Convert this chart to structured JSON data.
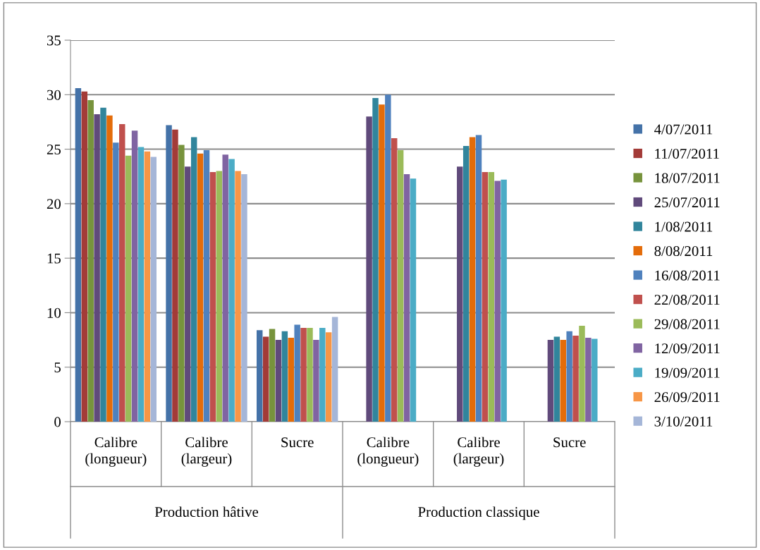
{
  "chart_data": {
    "type": "bar",
    "categories": [
      "Calibre\n(longueur)",
      "Calibre\n(largeur)",
      "Sucre",
      "Calibre\n(longueur)",
      "Calibre\n(largeur)",
      "Sucre"
    ],
    "annotations": [
      "Production hâtive",
      "Production classique"
    ],
    "ylim": [
      0,
      35
    ],
    "yticks": [
      0,
      5,
      10,
      15,
      20,
      25,
      30,
      35
    ],
    "grid": "y",
    "legend": "right",
    "series": [
      {
        "name": "4/07/2011",
        "color": "#4472a8",
        "values": [
          30.6,
          27.2,
          8.4,
          null,
          null,
          null
        ]
      },
      {
        "name": "11/07/2011",
        "color": "#a33b38",
        "values": [
          30.3,
          26.8,
          7.8,
          null,
          null,
          null
        ]
      },
      {
        "name": "18/07/2011",
        "color": "#77933c",
        "values": [
          29.5,
          25.4,
          8.5,
          null,
          null,
          null
        ]
      },
      {
        "name": "25/07/2011",
        "color": "#604a7b",
        "values": [
          28.2,
          23.4,
          7.5,
          28.0,
          23.4,
          7.5
        ]
      },
      {
        "name": "1/08/2011",
        "color": "#31859c",
        "values": [
          28.8,
          26.1,
          8.3,
          29.7,
          25.3,
          7.8
        ]
      },
      {
        "name": "8/08/2011",
        "color": "#e46c0a",
        "values": [
          28.1,
          24.6,
          7.7,
          29.1,
          26.1,
          7.5
        ]
      },
      {
        "name": "16/08/2011",
        "color": "#4f81bd",
        "values": [
          25.6,
          24.9,
          8.9,
          30.0,
          26.3,
          8.3
        ]
      },
      {
        "name": "22/08/2011",
        "color": "#c0504d",
        "values": [
          27.3,
          22.9,
          8.6,
          26.0,
          22.9,
          7.9
        ]
      },
      {
        "name": "29/08/2011",
        "color": "#9bbb59",
        "values": [
          24.4,
          23.0,
          8.6,
          24.9,
          22.9,
          8.8
        ]
      },
      {
        "name": "12/09/2011",
        "color": "#8064a2",
        "values": [
          26.7,
          24.5,
          7.5,
          22.7,
          22.1,
          7.7
        ]
      },
      {
        "name": "19/09/2011",
        "color": "#4bacc6",
        "values": [
          25.2,
          24.1,
          8.6,
          22.3,
          22.2,
          7.6
        ]
      },
      {
        "name": "26/09/2011",
        "color": "#f79646",
        "values": [
          24.8,
          23.0,
          8.2,
          null,
          null,
          null
        ]
      },
      {
        "name": "3/10/2011",
        "color": "#a5b6d8",
        "values": [
          24.3,
          22.7,
          9.6,
          null,
          null,
          null
        ]
      }
    ]
  }
}
